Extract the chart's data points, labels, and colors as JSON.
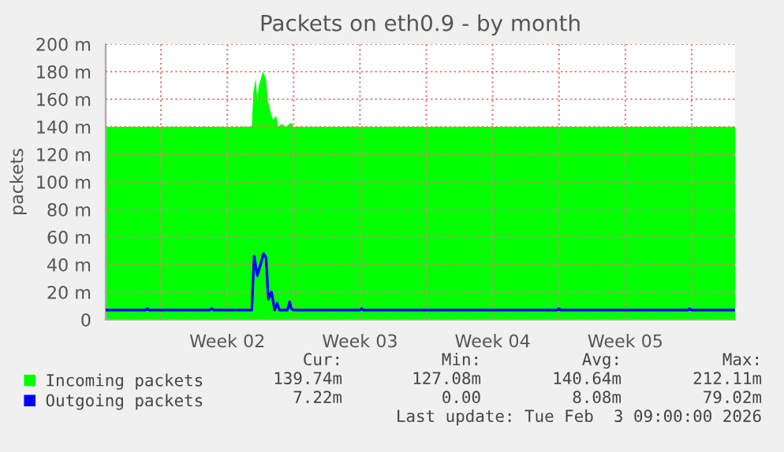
{
  "chart_data": {
    "type": "area",
    "title": "Packets on eth0.9 - by month",
    "ylabel": "packets",
    "xlim": [
      "2026-01-02T02:00",
      "2026-02-04T07:00"
    ],
    "ylim": [
      0,
      200
    ],
    "xticks": [
      {
        "value": "2026-01-05T00:00",
        "label": null
      },
      {
        "value": "2026-01-08T12:00",
        "label": "Week 02"
      },
      {
        "value": "2026-01-12T00:00",
        "label": null
      },
      {
        "value": "2026-01-15T12:00",
        "label": "Week 03"
      },
      {
        "value": "2026-01-19T00:00",
        "label": null
      },
      {
        "value": "2026-01-22T12:00",
        "label": "Week 04"
      },
      {
        "value": "2026-01-26T00:00",
        "label": null
      },
      {
        "value": "2026-01-29T12:00",
        "label": "Week 05"
      },
      {
        "value": "2026-02-02T00:00",
        "label": null
      }
    ],
    "yticks": [
      0,
      {
        "value": 20,
        "label": "20 m"
      },
      {
        "value": 40,
        "label": "40 m"
      },
      {
        "value": 60,
        "label": "60 m"
      },
      {
        "value": 80,
        "label": "80 m"
      },
      {
        "value": 100,
        "label": "100 m"
      },
      {
        "value": 120,
        "label": "120 m"
      },
      {
        "value": 140,
        "label": "140 m"
      },
      {
        "value": 160,
        "label": "160 m"
      },
      {
        "value": 180,
        "label": "180 m"
      },
      {
        "value": 200,
        "label": "200 m"
      }
    ],
    "grid": true,
    "legend": "bottom",
    "series": [
      {
        "name": "Incoming packets",
        "color": "#00ff00",
        "x": [
          "2026-01-02T02:00",
          "2026-01-09T19:00",
          "2026-01-09T21:00",
          "2026-01-10T00:00",
          "2026-01-10T02:00",
          "2026-01-10T04:00",
          "2026-01-10T09:00",
          "2026-01-10T13:00",
          "2026-01-10T15:00",
          "2026-01-10T19:00",
          "2026-01-10T22:00",
          "2026-01-11T02:00",
          "2026-01-11T04:00",
          "2026-01-11T09:00",
          "2026-01-11T14:00",
          "2026-01-11T21:00",
          "2026-01-12T00:00",
          "2026-02-04T07:00"
        ],
        "values": [
          140,
          140,
          165,
          175,
          160,
          170,
          180,
          175,
          160,
          150,
          145,
          148,
          140,
          142,
          140,
          143,
          140,
          140
        ]
      },
      {
        "name": "Outgoing packets",
        "type": "line",
        "color": "#0000ff",
        "x": [
          "2026-01-02T02:00",
          "2026-01-04T04:00",
          "2026-01-04T07:00",
          "2026-01-04T09:00",
          "2026-01-07T14:00",
          "2026-01-07T16:00",
          "2026-01-07T19:00",
          "2026-01-09T19:00",
          "2026-01-09T22:00",
          "2026-01-10T02:00",
          "2026-01-10T06:00",
          "2026-01-10T10:00",
          "2026-01-10T13:00",
          "2026-01-10T16:00",
          "2026-01-10T20:00",
          "2026-01-11T00:00",
          "2026-01-11T03:00",
          "2026-01-11T06:00",
          "2026-01-11T09:00",
          "2026-01-11T16:00",
          "2026-01-11T19:00",
          "2026-01-11T21:00",
          "2026-01-12T00:00",
          "2026-01-15T12:00",
          "2026-01-15T14:00",
          "2026-01-15T16:00",
          "2026-01-25T21:00",
          "2026-01-26T00:00",
          "2026-01-26T02:00",
          "2026-02-01T19:00",
          "2026-02-01T21:00",
          "2026-02-02T00:00",
          "2026-02-04T07:00"
        ],
        "values": [
          7,
          7,
          8,
          7,
          7,
          8,
          7,
          7,
          46,
          32,
          40,
          48,
          45,
          15,
          20,
          7,
          12,
          7,
          7,
          7,
          13,
          8,
          7,
          7,
          8,
          7,
          7,
          8,
          7,
          7,
          8,
          7,
          7
        ]
      }
    ],
    "annotations": [
      "Cur:",
      "Min:",
      "Avg:",
      "Max:",
      "139.74m",
      "127.08m",
      "140.64m",
      "212.11m",
      "7.22m",
      "0.00",
      "8.08m",
      "79.02m",
      "Last update: Tue Feb  3 09:00:00 2026"
    ]
  }
}
